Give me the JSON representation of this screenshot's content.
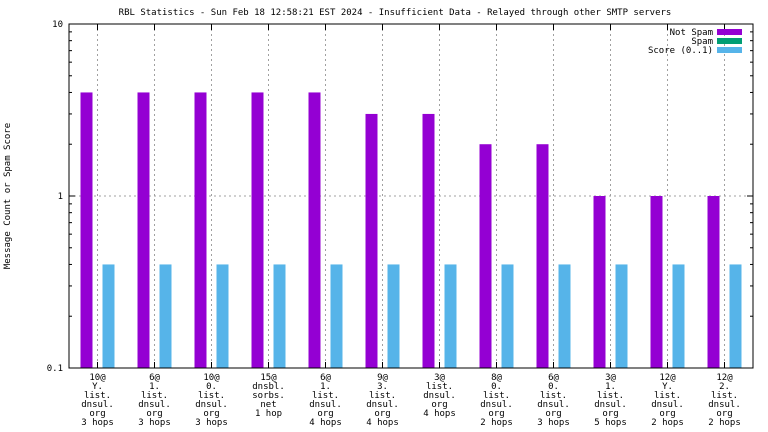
{
  "chart_data": {
    "type": "bar",
    "title": "RBL Statistics - Sun Feb 18 12:58:21 EST 2024 - Insufficient Data - Relayed through other SMTP servers",
    "ylabel": "Message Count or Spam Score",
    "xlabel": "",
    "yscale": "log",
    "ylim": [
      0.1,
      10
    ],
    "yticks": [
      {
        "value": 0.1,
        "label": "0.1"
      },
      {
        "value": 1,
        "label": "1"
      },
      {
        "value": 10,
        "label": "10"
      }
    ],
    "grid": true,
    "legend_position": "top-right",
    "categories": [
      [
        "10@",
        "Y.",
        "list.",
        "dnsul.",
        "org",
        "3 hops"
      ],
      [
        "6@",
        "1.",
        "list.",
        "dnsul.",
        "org",
        "3 hops"
      ],
      [
        "10@",
        "0.",
        "list.",
        "dnsul.",
        "org",
        "3 hops"
      ],
      [
        "15@",
        "dnsbl.",
        "sorbs.",
        "net",
        "1 hop"
      ],
      [
        "6@",
        "1.",
        "list.",
        "dnsul.",
        "org",
        "4 hops"
      ],
      [
        "9@",
        "3.",
        "list.",
        "dnsul.",
        "org",
        "4 hops"
      ],
      [
        "3@",
        "list.",
        "dnsul.",
        "org",
        "4 hops"
      ],
      [
        "8@",
        "0.",
        "list.",
        "dnsul.",
        "org",
        "2 hops"
      ],
      [
        "6@",
        "0.",
        "list.",
        "dnsul.",
        "org",
        "3 hops"
      ],
      [
        "3@",
        "1.",
        "list.",
        "dnsul.",
        "org",
        "5 hops"
      ],
      [
        "12@",
        "Y.",
        "list.",
        "dnsul.",
        "org",
        "2 hops"
      ],
      [
        "12@",
        "2.",
        "list.",
        "dnsul.",
        "org",
        "2 hops"
      ]
    ],
    "series": [
      {
        "name": "Not Spam",
        "color": "#9400d3",
        "values": [
          4,
          4,
          4,
          4,
          4,
          3,
          3,
          2,
          2,
          1,
          1,
          1
        ]
      },
      {
        "name": "Spam",
        "color": "#009e73",
        "values": [
          0,
          0,
          0,
          0,
          0,
          0,
          0,
          0,
          0,
          0,
          0,
          0
        ]
      },
      {
        "name": "Score (0..1)",
        "color": "#56b4e9",
        "values": [
          0.4,
          0.4,
          0.4,
          0.4,
          0.4,
          0.4,
          0.4,
          0.4,
          0.4,
          0.4,
          0.4,
          0.4
        ]
      }
    ]
  }
}
